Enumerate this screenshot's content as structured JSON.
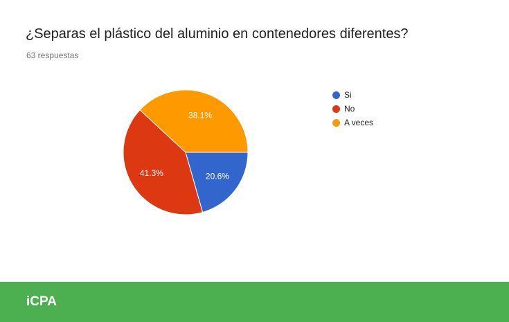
{
  "question": {
    "title": "¿Separas el plástico del aluminio en contenedores diferentes?",
    "responses": "63 respuestas"
  },
  "chart_data": {
    "type": "pie",
    "title": "¿Separas el plástico del aluminio en contenedores diferentes?",
    "categories": [
      "Si",
      "No",
      "A veces"
    ],
    "values": [
      20.6,
      41.3,
      38.1
    ],
    "labels": [
      "20.6%",
      "41.3%",
      "38.1%"
    ],
    "colors": [
      "#3366cc",
      "#dc3912",
      "#ff9900"
    ],
    "legend_position": "right"
  },
  "footer": {
    "brand": "iCPA",
    "color": "#4caf50"
  }
}
